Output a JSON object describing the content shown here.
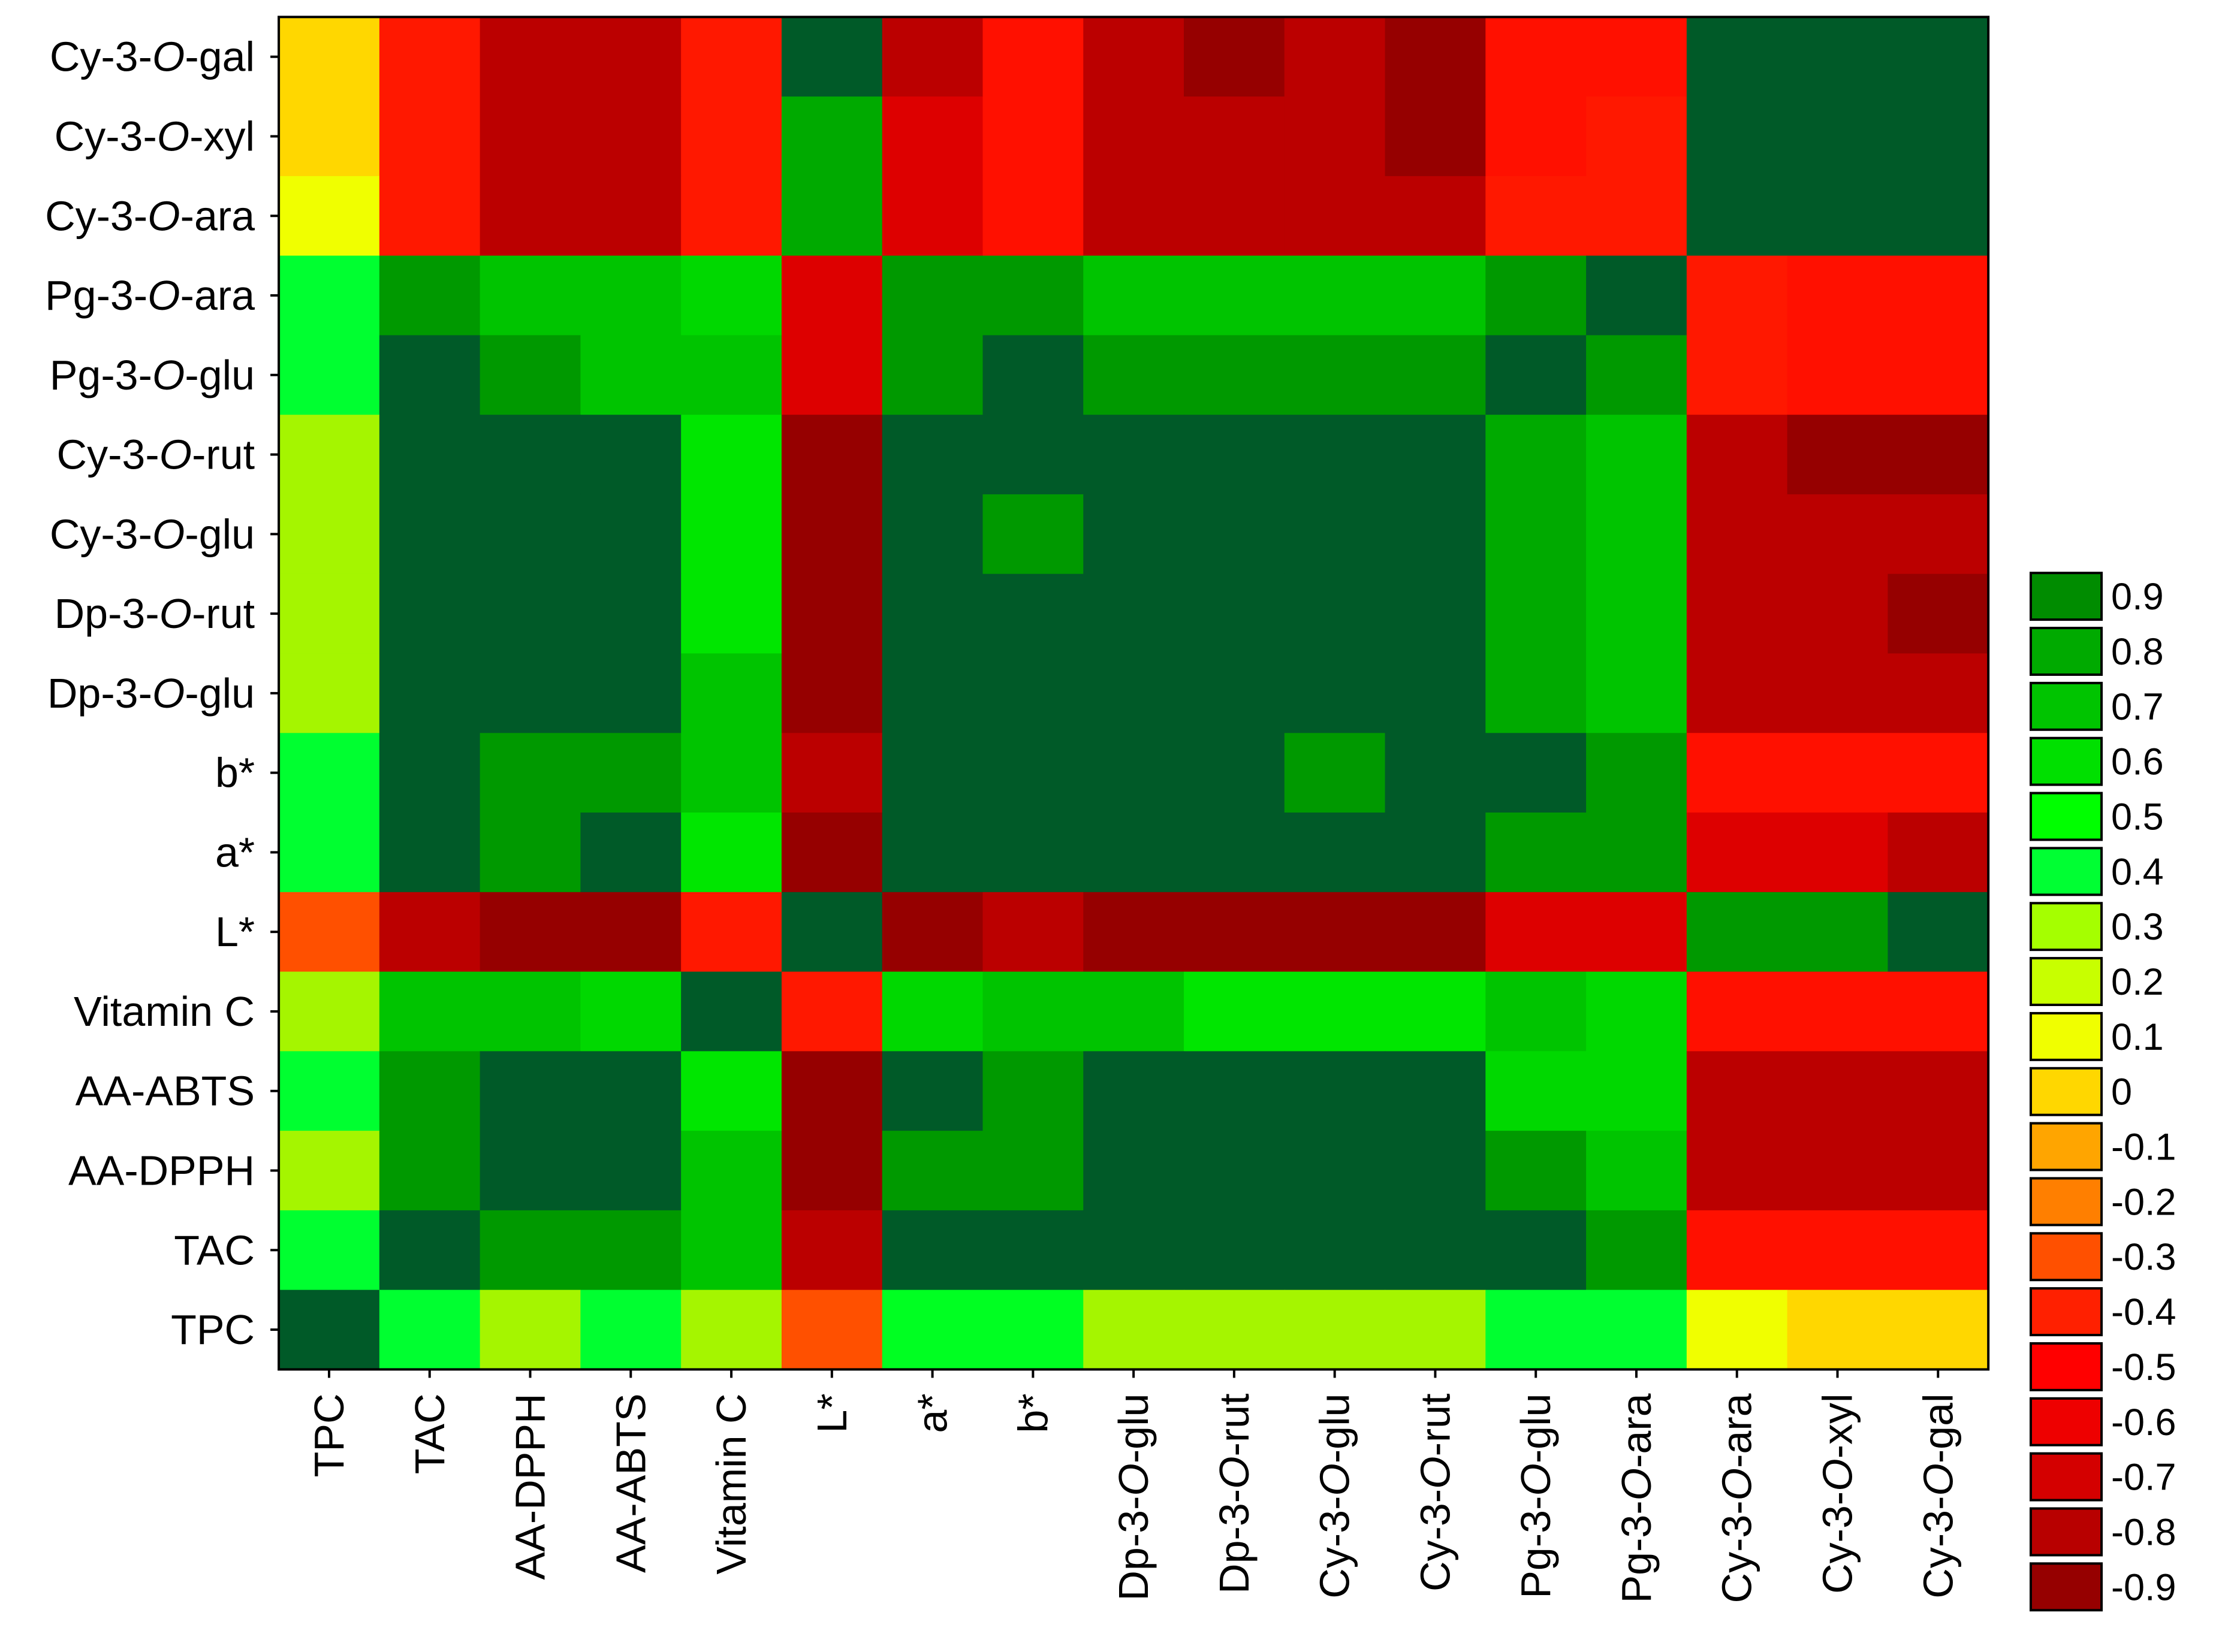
{
  "chart_data": {
    "type": "heatmap",
    "title": "",
    "xlabel": "",
    "ylabel": "",
    "x_categories": [
      "TPC",
      "TAC",
      "AA-DPPH",
      "AA-ABTS",
      "Vitamin C",
      "L*",
      "a*",
      "b*",
      "Dp-3-O-glu",
      "Dp-3-O-rut",
      "Cy-3-O-glu",
      "Cy-3-O-rut",
      "Pg-3-O-glu",
      "Pg-3-O-ara",
      "Cy-3-O-ara",
      "Cy-3-O-xyl",
      "Cy-3-O-gal"
    ],
    "y_categories": [
      "Cy-3-O-gal",
      "Cy-3-O-xyl",
      "Cy-3-O-ara",
      "Pg-3-O-ara",
      "Pg-3-O-glu",
      "Cy-3-O-rut",
      "Cy-3-O-glu",
      "Dp-3-O-rut",
      "Dp-3-O-glu",
      "b*",
      "a*",
      "L*",
      "Vitamin C",
      "AA-ABTS",
      "AA-DPPH",
      "TAC",
      "TPC"
    ],
    "italic_O_in_labels": true,
    "values": [
      [
        -0.05,
        -0.45,
        -0.75,
        -0.75,
        -0.45,
        0.95,
        -0.75,
        -0.5,
        -0.75,
        -0.85,
        -0.75,
        -0.9,
        -0.5,
        -0.5,
        0.95,
        0.95,
        0.95
      ],
      [
        -0.05,
        -0.45,
        -0.75,
        -0.75,
        -0.45,
        0.75,
        -0.65,
        -0.5,
        -0.75,
        -0.75,
        -0.75,
        -0.9,
        -0.5,
        -0.45,
        0.95,
        0.95,
        0.95
      ],
      [
        0.05,
        -0.45,
        -0.75,
        -0.75,
        -0.45,
        0.75,
        -0.65,
        -0.5,
        -0.75,
        -0.75,
        -0.75,
        -0.75,
        -0.45,
        -0.45,
        0.95,
        0.95,
        0.95
      ],
      [
        0.55,
        0.8,
        0.7,
        0.7,
        0.65,
        -0.65,
        0.8,
        0.8,
        0.7,
        0.7,
        0.7,
        0.7,
        0.8,
        0.95,
        -0.45,
        -0.5,
        -0.5
      ],
      [
        0.55,
        0.95,
        0.8,
        0.7,
        0.7,
        -0.65,
        0.8,
        0.95,
        0.8,
        0.8,
        0.8,
        0.8,
        0.95,
        0.8,
        -0.45,
        -0.5,
        -0.5
      ],
      [
        0.3,
        0.95,
        0.95,
        0.95,
        0.6,
        -0.85,
        0.95,
        0.95,
        0.95,
        0.95,
        0.95,
        0.95,
        0.75,
        0.7,
        -0.75,
        -0.85,
        -0.85
      ],
      [
        0.3,
        0.95,
        0.95,
        0.95,
        0.6,
        -0.85,
        0.95,
        0.8,
        0.95,
        0.95,
        0.95,
        0.95,
        0.75,
        0.7,
        -0.75,
        -0.75,
        -0.75
      ],
      [
        0.3,
        0.95,
        0.95,
        0.95,
        0.6,
        -0.85,
        0.95,
        0.95,
        0.95,
        0.95,
        0.95,
        0.95,
        0.75,
        0.7,
        -0.75,
        -0.75,
        -0.85
      ],
      [
        0.3,
        0.95,
        0.95,
        0.95,
        0.7,
        -0.85,
        0.95,
        0.95,
        0.95,
        0.95,
        0.95,
        0.95,
        0.75,
        0.7,
        -0.75,
        -0.75,
        -0.75
      ],
      [
        0.55,
        0.95,
        0.8,
        0.8,
        0.7,
        -0.75,
        0.95,
        0.95,
        0.95,
        0.95,
        0.8,
        0.95,
        0.95,
        0.8,
        -0.5,
        -0.5,
        -0.5
      ],
      [
        0.55,
        0.95,
        0.8,
        0.95,
        0.6,
        -0.85,
        0.95,
        0.95,
        0.95,
        0.95,
        0.95,
        0.95,
        0.8,
        0.8,
        -0.65,
        -0.65,
        -0.75
      ],
      [
        -0.3,
        -0.75,
        -0.85,
        -0.85,
        -0.45,
        0.95,
        -0.85,
        -0.75,
        -0.85,
        -0.85,
        -0.85,
        -0.85,
        -0.65,
        -0.65,
        0.8,
        0.8,
        0.95
      ],
      [
        0.3,
        0.7,
        0.7,
        0.65,
        0.95,
        -0.45,
        0.65,
        0.7,
        0.7,
        0.6,
        0.6,
        0.6,
        0.7,
        0.65,
        -0.5,
        -0.5,
        -0.5
      ],
      [
        0.55,
        0.8,
        0.95,
        0.95,
        0.6,
        -0.85,
        0.95,
        0.8,
        0.95,
        0.95,
        0.95,
        0.95,
        0.65,
        0.65,
        -0.75,
        -0.75,
        -0.75
      ],
      [
        0.3,
        0.8,
        0.95,
        0.95,
        0.7,
        -0.85,
        0.8,
        0.8,
        0.95,
        0.95,
        0.95,
        0.95,
        0.8,
        0.7,
        -0.75,
        -0.75,
        -0.75
      ],
      [
        0.55,
        0.95,
        0.8,
        0.8,
        0.7,
        -0.75,
        0.95,
        0.95,
        0.95,
        0.95,
        0.95,
        0.95,
        0.95,
        0.8,
        -0.5,
        -0.5,
        -0.5
      ],
      [
        0.95,
        0.55,
        0.3,
        0.55,
        0.3,
        -0.3,
        0.5,
        0.5,
        0.3,
        0.3,
        0.3,
        0.3,
        0.55,
        0.55,
        0.05,
        -0.05,
        -0.05
      ]
    ],
    "legend": {
      "placement": "right",
      "labels": [
        "0.9",
        "0.8",
        "0.7",
        "0.6",
        "0.5",
        "0.4",
        "0.3",
        "0.2",
        "0.1",
        "0",
        "-0.1",
        "-0.2",
        "-0.3",
        "-0.4",
        "-0.5",
        "-0.6",
        "-0.7",
        "-0.8",
        "-0.9"
      ],
      "colors": [
        "#008C00",
        "#00AA00",
        "#00C400",
        "#00E000",
        "#00FF00",
        "#00FF33",
        "#A5FF00",
        "#C8FF00",
        "#F0FF00",
        "#FFD700",
        "#FFA500",
        "#FF7F00",
        "#FF5000",
        "#FF2000",
        "#FF0000",
        "#EE0000",
        "#D40000",
        "#B80000",
        "#960000"
      ]
    },
    "colors": {
      "0.95": "#005A28",
      "0.8": "#009900",
      "0.7": "#00C400",
      "0.65": "#00D800",
      "0.6": "#00E600",
      "0.55": "#00FF30",
      "0.5": "#00FF22",
      "0.3": "#A5F500",
      "0.05": "#F0FF00",
      "-0.05": "#FFD700",
      "-0.3": "#FF5000",
      "-0.45": "#FF1800",
      "-0.5": "#FF1000",
      "-0.65": "#DD0000",
      "-0.75": "#BB0000",
      "-0.85": "#960000",
      "-0.9": "#960000"
    },
    "grid": false
  }
}
